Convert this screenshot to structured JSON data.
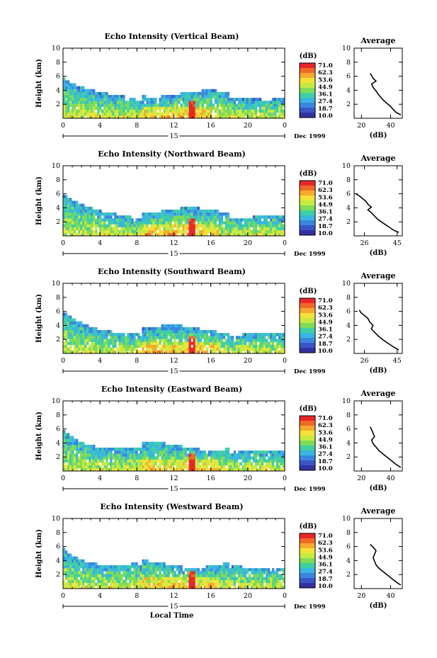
{
  "figure": {
    "xlabel": "Local Time",
    "colorbar_unit": "(dB)",
    "colorbar_ticks": [
      "71.0",
      "62.3",
      "53.6",
      "44.9",
      "36.1",
      "27.4",
      "18.7",
      "10.0"
    ],
    "colorbar_colors": [
      "#e8262a",
      "#f06a26",
      "#f6a92d",
      "#f4e23a",
      "#c6ea43",
      "#7fdb58",
      "#3fcfa4",
      "#39b6e0",
      "#3a86de",
      "#3a55c8",
      "#3231a0"
    ],
    "date_label": "Dec 1999",
    "day_label": "15"
  },
  "chart_data": [
    {
      "type": "heatmap",
      "title": "Echo Intensity (Vertical Beam)",
      "ylabel": "Height (km)",
      "x_ticks": [
        "0",
        "4",
        "8",
        "12",
        "16",
        "20",
        "0"
      ],
      "y_ticks": [
        "2",
        "4",
        "6",
        "8",
        "10"
      ],
      "xlim": [
        0,
        24
      ],
      "ylim": [
        0,
        10
      ],
      "colorbar_range": [
        10.0,
        71.0
      ],
      "profile": {
        "title": "Average",
        "xlabel": "(dB)",
        "x_ticks": [
          "20",
          "40"
        ],
        "xlim": [
          15,
          48
        ],
        "ylim": [
          0,
          10
        ],
        "points": [
          [
            47,
            0.5
          ],
          [
            44,
            0.8
          ],
          [
            42,
            1.2
          ],
          [
            40,
            1.7
          ],
          [
            37,
            2.2
          ],
          [
            34,
            2.8
          ],
          [
            32,
            3.3
          ],
          [
            30,
            3.9
          ],
          [
            28,
            4.4
          ],
          [
            27,
            4.9
          ],
          [
            30,
            5.3
          ],
          [
            28,
            5.7
          ],
          [
            27,
            6.1
          ],
          [
            26,
            6.4
          ]
        ]
      }
    },
    {
      "type": "heatmap",
      "title": "Echo Intensity (Northward Beam)",
      "ylabel": "Height (km)",
      "x_ticks": [
        "0",
        "4",
        "8",
        "12",
        "16",
        "20",
        "0"
      ],
      "y_ticks": [
        "2",
        "4",
        "6",
        "8",
        "10"
      ],
      "xlim": [
        0,
        24
      ],
      "ylim": [
        0,
        10
      ],
      "colorbar_range": [
        10.0,
        71.0
      ],
      "profile": {
        "title": "Average",
        "xlabel": "(dB)",
        "x_ticks": [
          "26",
          "45"
        ],
        "xlim": [
          20,
          48
        ],
        "ylim": [
          0,
          10
        ],
        "points": [
          [
            46,
            0.5
          ],
          [
            43,
            0.8
          ],
          [
            40,
            1.3
          ],
          [
            37,
            1.8
          ],
          [
            34,
            2.3
          ],
          [
            32,
            2.8
          ],
          [
            30,
            3.3
          ],
          [
            28,
            3.7
          ],
          [
            30,
            4.1
          ],
          [
            28,
            4.5
          ],
          [
            27,
            4.9
          ],
          [
            25,
            5.3
          ],
          [
            23,
            5.7
          ],
          [
            21,
            6.0
          ]
        ]
      }
    },
    {
      "type": "heatmap",
      "title": "Echo Intensity (Southward Beam)",
      "ylabel": "Height (km)",
      "x_ticks": [
        "0",
        "4",
        "8",
        "12",
        "16",
        "20",
        "0"
      ],
      "y_ticks": [
        "2",
        "4",
        "6",
        "8",
        "10"
      ],
      "xlim": [
        0,
        24
      ],
      "ylim": [
        0,
        10
      ],
      "colorbar_range": [
        10.0,
        71.0
      ],
      "profile": {
        "title": "Average",
        "xlabel": "(dB)",
        "x_ticks": [
          "26",
          "45"
        ],
        "xlim": [
          20,
          48
        ],
        "ylim": [
          0,
          10
        ],
        "points": [
          [
            46,
            0.5
          ],
          [
            43,
            0.9
          ],
          [
            40,
            1.4
          ],
          [
            37,
            1.9
          ],
          [
            34,
            2.5
          ],
          [
            32,
            3.0
          ],
          [
            30,
            3.5
          ],
          [
            31,
            4.0
          ],
          [
            29,
            4.5
          ],
          [
            28,
            5.0
          ],
          [
            26,
            5.4
          ],
          [
            24,
            5.8
          ],
          [
            23,
            6.2
          ]
        ]
      }
    },
    {
      "type": "heatmap",
      "title": "Echo Intensity (Eastward Beam)",
      "ylabel": "Height (km)",
      "x_ticks": [
        "0",
        "4",
        "8",
        "12",
        "16",
        "20",
        "0"
      ],
      "y_ticks": [
        "2",
        "4",
        "6",
        "8",
        "10"
      ],
      "xlim": [
        0,
        24
      ],
      "ylim": [
        0,
        10
      ],
      "colorbar_range": [
        10.0,
        71.0
      ],
      "profile": {
        "title": "Average",
        "xlabel": "(dB)",
        "x_ticks": [
          "20",
          "40"
        ],
        "xlim": [
          15,
          48
        ],
        "ylim": [
          0,
          10
        ],
        "points": [
          [
            47,
            0.5
          ],
          [
            44,
            0.9
          ],
          [
            41,
            1.4
          ],
          [
            38,
            1.9
          ],
          [
            35,
            2.4
          ],
          [
            32,
            2.9
          ],
          [
            30,
            3.4
          ],
          [
            28,
            3.9
          ],
          [
            27,
            4.4
          ],
          [
            29,
            4.9
          ],
          [
            28,
            5.4
          ],
          [
            27,
            5.9
          ],
          [
            26,
            6.3
          ]
        ]
      }
    },
    {
      "type": "heatmap",
      "title": "Echo Intensity (Westward Beam)",
      "ylabel": "Height (km)",
      "x_ticks": [
        "0",
        "4",
        "8",
        "12",
        "16",
        "20",
        "0"
      ],
      "y_ticks": [
        "2",
        "4",
        "6",
        "8",
        "10"
      ],
      "xlim": [
        0,
        24
      ],
      "ylim": [
        0,
        10
      ],
      "colorbar_range": [
        10.0,
        71.0
      ],
      "profile": {
        "title": "Average",
        "xlabel": "(dB)",
        "x_ticks": [
          "20",
          "40"
        ],
        "xlim": [
          15,
          48
        ],
        "ylim": [
          0,
          10
        ],
        "points": [
          [
            47,
            0.5
          ],
          [
            44,
            0.9
          ],
          [
            41,
            1.4
          ],
          [
            38,
            1.9
          ],
          [
            35,
            2.4
          ],
          [
            32,
            2.9
          ],
          [
            30,
            3.4
          ],
          [
            29,
            3.9
          ],
          [
            28,
            4.4
          ],
          [
            29,
            4.9
          ],
          [
            30,
            5.4
          ],
          [
            28,
            5.9
          ],
          [
            26,
            6.3
          ]
        ]
      }
    }
  ]
}
